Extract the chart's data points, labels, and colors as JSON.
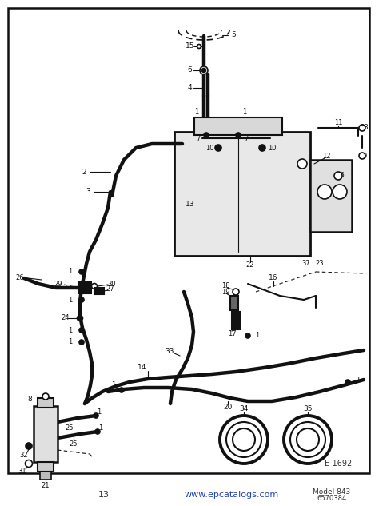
{
  "bg_color": "#ffffff",
  "border_color": "#222222",
  "diagram_color": "#111111",
  "fig_width": 4.74,
  "fig_height": 6.33,
  "dpi": 100,
  "page_number": "13",
  "website": "www.epcatalogs.com",
  "model": "Model 843",
  "part_number": "6570384",
  "diagram_id": "E-1692"
}
